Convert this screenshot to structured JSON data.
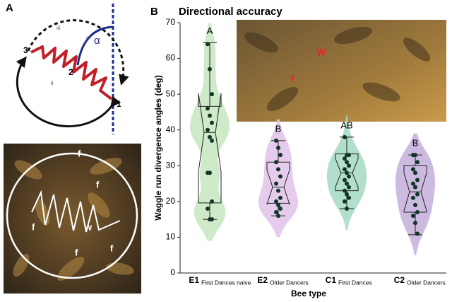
{
  "panel_a": {
    "label": "A",
    "diagram_labels": [
      "3",
      "2",
      "1",
      "iii",
      "i",
      "ii",
      "α"
    ],
    "photo_labels": [
      "f",
      "f",
      "f",
      "f",
      "f",
      "w"
    ]
  },
  "panel_b": {
    "label": "B",
    "photo_labels": [
      "W",
      "f"
    ]
  },
  "chart_data": {
    "type": "box",
    "title": "Directional accuracy",
    "y_label": "Waggle run divergence angles (deg)",
    "x_label": "Bee type",
    "categories": [
      "E1",
      "E2",
      "C1",
      "C2"
    ],
    "subcategories": [
      "First Dances naive",
      "Older Dancers",
      "First Dances",
      "Older Dancers"
    ],
    "group_letters": [
      "A",
      "B",
      "AB",
      "B"
    ],
    "ylim": [
      0,
      70
    ],
    "yticks": [
      0,
      10,
      20,
      30,
      40,
      50,
      60,
      70
    ],
    "stats": [
      {
        "color": "#c9e8c3",
        "min": 15,
        "q1": 19.6,
        "median": 39.3,
        "q3": 46.6,
        "max": 64.4,
        "points": [
          64,
          57,
          50,
          46,
          44,
          42,
          40,
          38,
          37,
          28,
          28,
          20,
          18,
          15,
          15
        ]
      },
      {
        "color": "#e2c6ea",
        "min": 16,
        "q1": 19.5,
        "median": 24,
        "q3": 31,
        "max": 37,
        "points": [
          37,
          35,
          33,
          31,
          29,
          27,
          25,
          23,
          21,
          20,
          19,
          18,
          17,
          16
        ]
      },
      {
        "color": "#a9dcc6",
        "min": 18,
        "q1": 23,
        "median": 28,
        "q3": 33.3,
        "max": 38,
        "points": [
          38,
          33,
          33,
          32,
          31,
          30,
          29,
          28,
          27,
          26,
          25,
          24,
          23,
          22,
          21,
          20,
          18
        ]
      },
      {
        "color": "#c8b2de",
        "min": 10.7,
        "q1": 17,
        "median": 22.7,
        "q3": 30,
        "max": 33,
        "points": [
          33,
          33,
          31,
          29,
          28,
          26,
          25,
          24,
          22,
          21,
          19,
          17,
          16,
          14,
          11
        ]
      }
    ]
  }
}
